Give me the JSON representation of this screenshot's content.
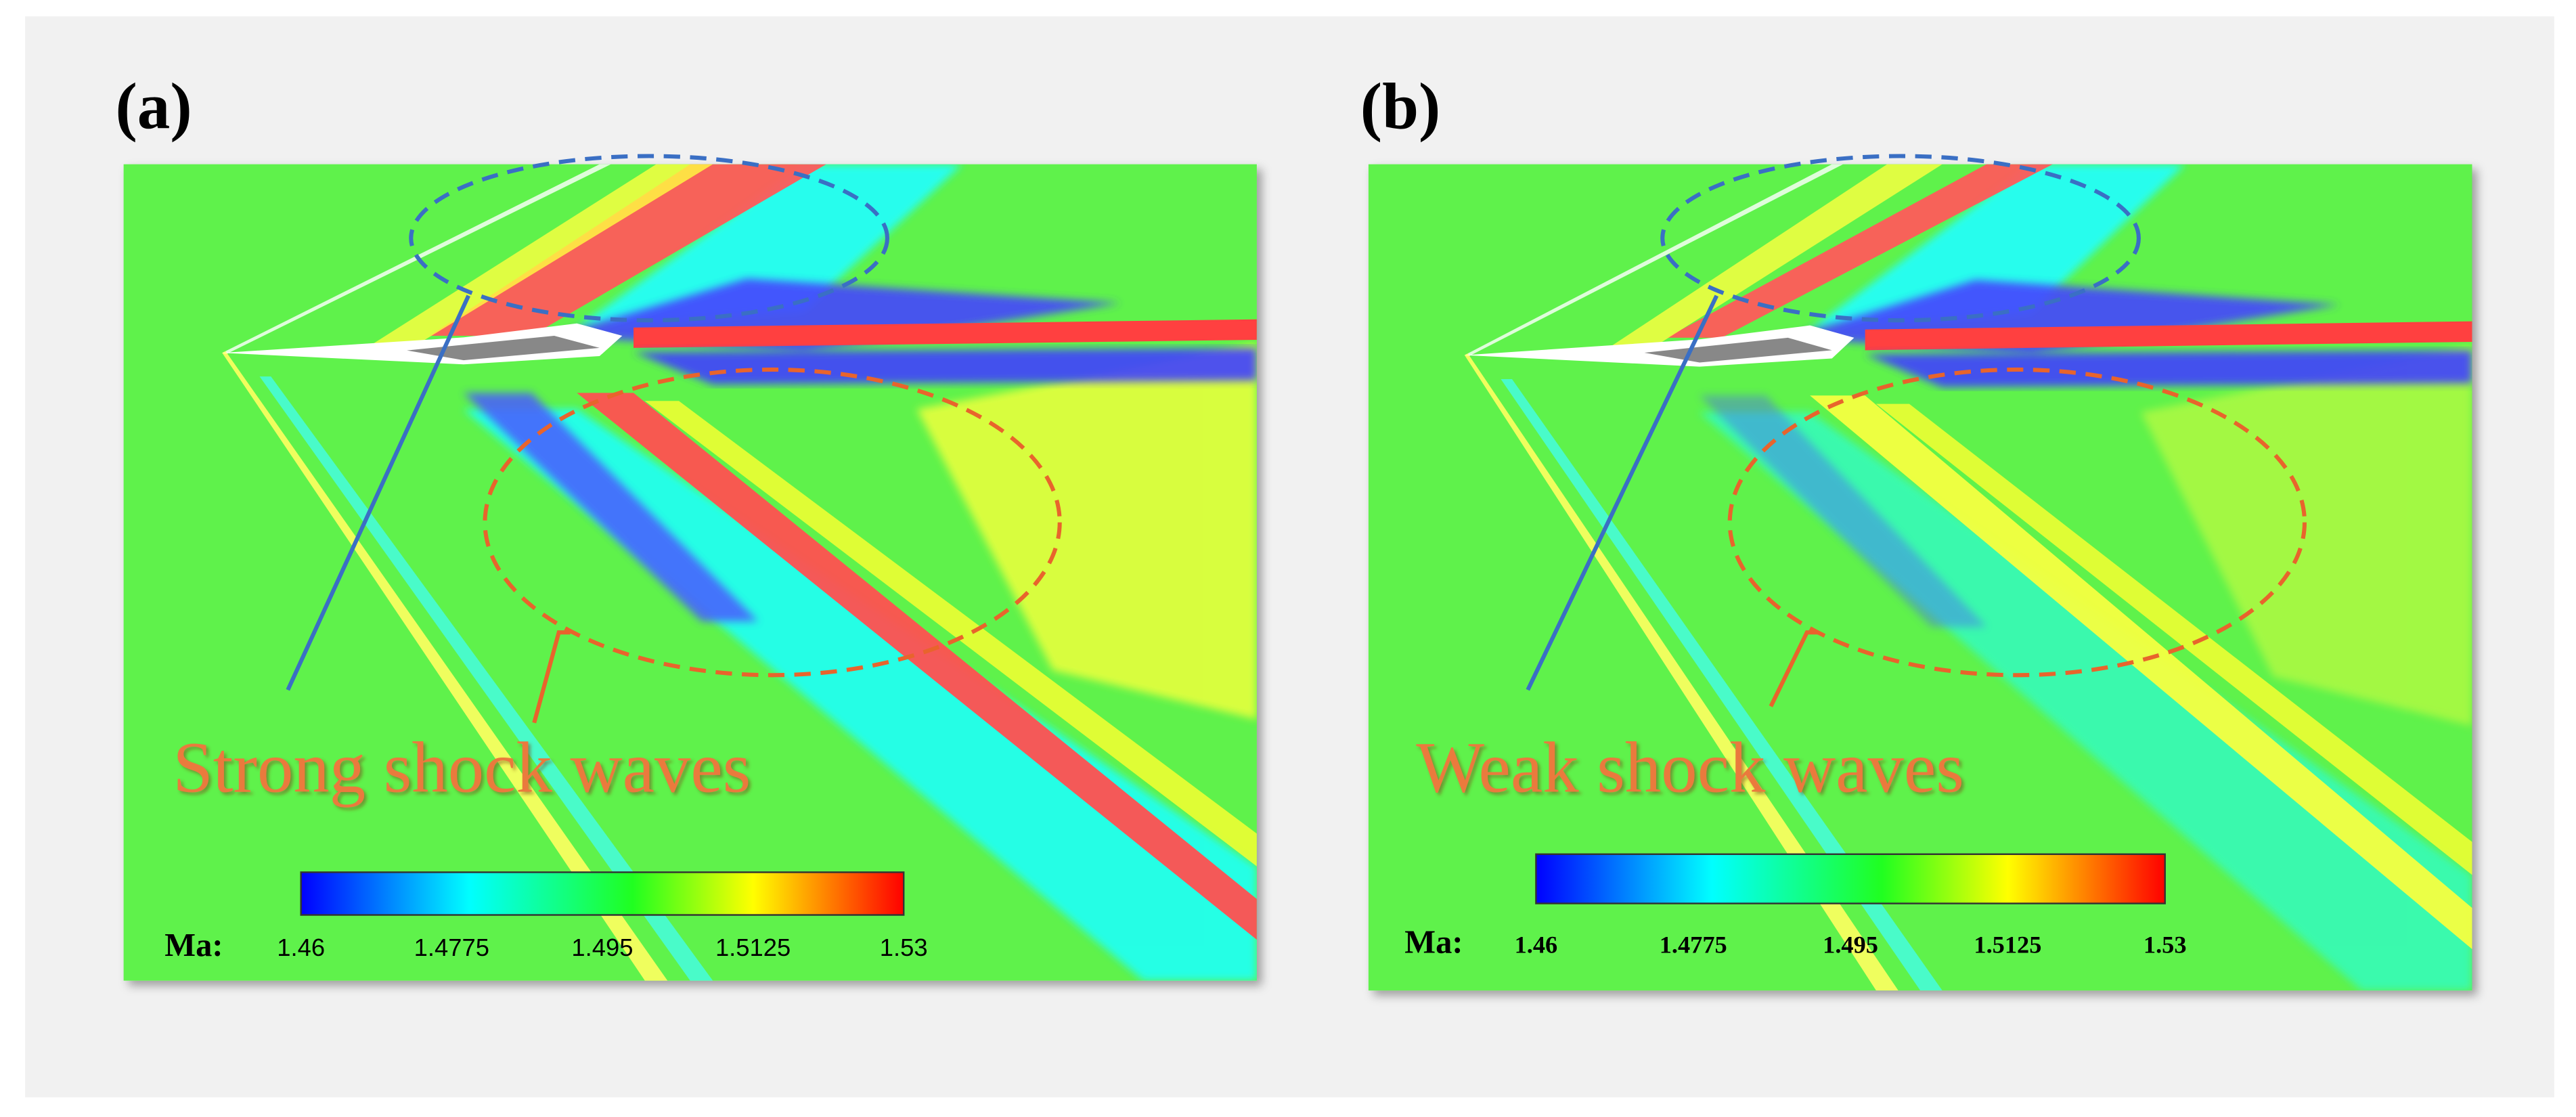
{
  "panels": [
    {
      "label": "(a)",
      "annotation": "Strong shock waves",
      "colorbar": {
        "label": "Ma:",
        "ticks": [
          "1.46",
          "1.4775",
          "1.495",
          "1.5125",
          "1.53"
        ]
      }
    },
    {
      "label": "(b)",
      "annotation": "Weak shock waves",
      "colorbar": {
        "label": "Ma:",
        "ticks": [
          "1.46",
          "1.4775",
          "1.495",
          "1.5125",
          "1.53"
        ]
      }
    }
  ]
}
